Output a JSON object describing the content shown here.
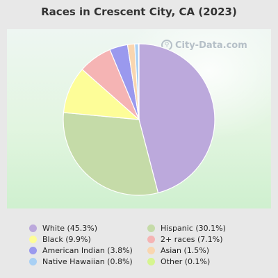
{
  "chart_data": {
    "type": "pie",
    "title": "Races in Crescent City, CA (2023)",
    "slices": [
      {
        "label": "White (45.3%)",
        "value": 45.3,
        "color": "#bca9dc"
      },
      {
        "label": "Hispanic (30.1%)",
        "value": 30.1,
        "color": "#c5dba8"
      },
      {
        "label": "Black (9.9%)",
        "value": 9.9,
        "color": "#fdfd98"
      },
      {
        "label": "2+ races (7.1%)",
        "value": 7.1,
        "color": "#f5b4b4"
      },
      {
        "label": "American Indian (3.8%)",
        "value": 3.8,
        "color": "#9a99ee"
      },
      {
        "label": "Asian (1.5%)",
        "value": 1.5,
        "color": "#f9d6b0"
      },
      {
        "label": "Native Hawaiian (0.8%)",
        "value": 0.8,
        "color": "#a8d0f4"
      },
      {
        "label": "Other (0.1%)",
        "value": 0.1,
        "color": "#d6f590"
      }
    ],
    "legend_order": [
      0,
      1,
      2,
      3,
      4,
      5,
      6,
      7
    ],
    "legend_position": "bottom"
  },
  "watermark": {
    "text": "City-Data.com",
    "icon": "magnifier-icon"
  }
}
